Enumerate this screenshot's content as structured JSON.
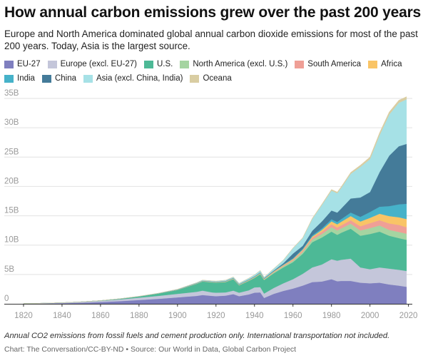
{
  "title": "How annual carbon emissions grew over the past 200 years",
  "subtitle": "Europe and North America dominated global annual carbon dioxide emissions for most of the past 200 years. Today, Asia is the largest source.",
  "note": "Annual CO2 emissions from fossil fuels and cement production only. International transportation not included.",
  "credit": "Chart: The Conversation/CC-BY-ND • Source: Our World in Data, Global Carbon Project",
  "chart_data": {
    "type": "area",
    "stacked": true,
    "title": "How annual carbon emissions grew over the past 200 years",
    "xlabel": "",
    "ylabel": "",
    "x": [
      1820,
      1830,
      1840,
      1850,
      1860,
      1870,
      1880,
      1890,
      1900,
      1910,
      1913,
      1918,
      1920,
      1925,
      1929,
      1932,
      1937,
      1940,
      1943,
      1945,
      1950,
      1955,
      1960,
      1965,
      1970,
      1975,
      1980,
      1983,
      1985,
      1990,
      1995,
      2000,
      2005,
      2010,
      2015,
      2019
    ],
    "xticks": [
      1820,
      1840,
      1860,
      1880,
      1900,
      1920,
      1940,
      1960,
      1980,
      2000,
      2020
    ],
    "ylim": [
      0,
      35
    ],
    "yticks": [
      0,
      5,
      10,
      15,
      20,
      25,
      30,
      35
    ],
    "ytick_labels": [
      "0",
      "5B",
      "10B",
      "15B",
      "20B",
      "25B",
      "30B",
      "35B"
    ],
    "grid": true,
    "legend_position": "top",
    "series": [
      {
        "name": "EU-27",
        "color": "#7f7fbf",
        "values": [
          0.03,
          0.05,
          0.1,
          0.18,
          0.3,
          0.45,
          0.65,
          0.85,
          1.1,
          1.35,
          1.5,
          1.35,
          1.3,
          1.4,
          1.65,
          1.3,
          1.6,
          1.9,
          1.95,
          1.0,
          1.7,
          2.2,
          2.6,
          3.1,
          3.7,
          3.8,
          4.2,
          3.85,
          3.9,
          3.9,
          3.6,
          3.5,
          3.6,
          3.3,
          3.1,
          2.9
        ]
      },
      {
        "name": "Europe (excl. EU-27)",
        "color": "#c4c6da",
        "values": [
          0.02,
          0.04,
          0.08,
          0.14,
          0.2,
          0.3,
          0.4,
          0.5,
          0.6,
          0.7,
          0.75,
          0.6,
          0.6,
          0.55,
          0.6,
          0.6,
          0.7,
          0.9,
          0.9,
          0.75,
          1.0,
          1.3,
          1.6,
          2.0,
          2.5,
          2.9,
          3.4,
          3.5,
          3.6,
          3.8,
          2.6,
          2.4,
          2.6,
          2.7,
          2.7,
          2.7
        ]
      },
      {
        "name": "U.S.",
        "color": "#4db996",
        "values": [
          0.0,
          0.01,
          0.01,
          0.02,
          0.05,
          0.1,
          0.2,
          0.4,
          0.65,
          1.35,
          1.55,
          1.7,
          1.7,
          1.75,
          1.95,
          1.25,
          1.6,
          1.6,
          2.2,
          2.3,
          2.5,
          2.7,
          2.9,
          3.4,
          4.3,
          4.6,
          4.7,
          4.4,
          4.6,
          5.1,
          5.4,
          6.0,
          6.1,
          5.6,
          5.4,
          5.3
        ]
      },
      {
        "name": "North America (excl. U.S.)",
        "color": "#a5d4a1",
        "values": [
          0.0,
          0.0,
          0.0,
          0.0,
          0.0,
          0.01,
          0.01,
          0.02,
          0.03,
          0.04,
          0.05,
          0.06,
          0.06,
          0.06,
          0.07,
          0.05,
          0.07,
          0.08,
          0.1,
          0.1,
          0.15,
          0.2,
          0.25,
          0.33,
          0.45,
          0.6,
          0.75,
          0.75,
          0.75,
          0.85,
          0.9,
          1.0,
          1.05,
          1.0,
          1.05,
          1.05
        ]
      },
      {
        "name": "South America",
        "color": "#ef9f96",
        "values": [
          0.0,
          0.0,
          0.0,
          0.0,
          0.0,
          0.0,
          0.0,
          0.0,
          0.01,
          0.02,
          0.02,
          0.02,
          0.02,
          0.02,
          0.03,
          0.03,
          0.03,
          0.04,
          0.05,
          0.05,
          0.08,
          0.12,
          0.17,
          0.22,
          0.3,
          0.38,
          0.5,
          0.5,
          0.52,
          0.6,
          0.72,
          0.85,
          0.9,
          1.1,
          1.2,
          1.1
        ]
      },
      {
        "name": "Africa",
        "color": "#f9c466",
        "values": [
          0.0,
          0.0,
          0.0,
          0.0,
          0.0,
          0.0,
          0.0,
          0.0,
          0.01,
          0.02,
          0.02,
          0.02,
          0.02,
          0.03,
          0.04,
          0.04,
          0.05,
          0.05,
          0.05,
          0.06,
          0.08,
          0.1,
          0.12,
          0.15,
          0.2,
          0.3,
          0.5,
          0.55,
          0.6,
          0.7,
          0.8,
          0.9,
          1.1,
          1.25,
          1.3,
          1.4
        ]
      },
      {
        "name": "India",
        "color": "#46b2c9",
        "values": [
          0.0,
          0.0,
          0.0,
          0.0,
          0.0,
          0.0,
          0.01,
          0.01,
          0.02,
          0.03,
          0.03,
          0.04,
          0.04,
          0.05,
          0.05,
          0.05,
          0.06,
          0.07,
          0.07,
          0.07,
          0.08,
          0.1,
          0.12,
          0.16,
          0.2,
          0.26,
          0.35,
          0.4,
          0.45,
          0.6,
          0.8,
          1.0,
          1.2,
          1.7,
          2.2,
          2.6
        ]
      },
      {
        "name": "China",
        "color": "#447b99",
        "values": [
          0.0,
          0.0,
          0.0,
          0.0,
          0.0,
          0.0,
          0.0,
          0.0,
          0.01,
          0.02,
          0.02,
          0.02,
          0.02,
          0.03,
          0.03,
          0.03,
          0.04,
          0.04,
          0.05,
          0.05,
          0.08,
          0.2,
          0.8,
          0.5,
          0.8,
          1.2,
          1.5,
          1.6,
          1.8,
          2.4,
          3.3,
          3.4,
          5.9,
          8.6,
          9.9,
          10.2
        ]
      },
      {
        "name": "Asia (excl. China, India)",
        "color": "#a6e1e6",
        "values": [
          0.0,
          0.0,
          0.0,
          0.0,
          0.0,
          0.01,
          0.02,
          0.03,
          0.05,
          0.08,
          0.1,
          0.1,
          0.11,
          0.13,
          0.15,
          0.15,
          0.2,
          0.25,
          0.3,
          0.15,
          0.3,
          0.5,
          0.9,
          1.3,
          2.0,
          2.8,
          3.4,
          3.3,
          3.5,
          4.2,
          5.2,
          5.6,
          6.3,
          7.0,
          7.4,
          7.6
        ]
      },
      {
        "name": "Oceana",
        "color": "#d9cda2",
        "values": [
          0.0,
          0.0,
          0.0,
          0.0,
          0.0,
          0.0,
          0.0,
          0.0,
          0.01,
          0.01,
          0.01,
          0.01,
          0.01,
          0.02,
          0.02,
          0.02,
          0.02,
          0.02,
          0.02,
          0.02,
          0.03,
          0.05,
          0.07,
          0.09,
          0.12,
          0.15,
          0.19,
          0.2,
          0.21,
          0.25,
          0.3,
          0.37,
          0.42,
          0.44,
          0.45,
          0.45
        ]
      }
    ]
  }
}
